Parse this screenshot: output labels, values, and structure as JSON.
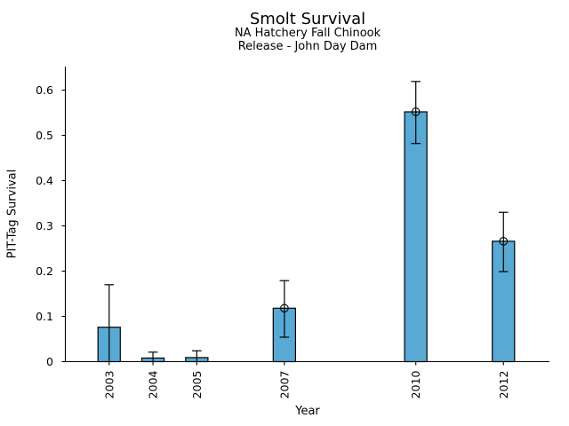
{
  "page": {
    "background": "#ffffff"
  },
  "chart_data": {
    "type": "bar",
    "title": "Smolt Survival",
    "subtitle_lines": [
      "NA Hatchery Fall Chinook",
      "Release - John Day Dam"
    ],
    "xlabel": "Year",
    "ylabel": "PIT-Tag Survival",
    "categories": [
      "2003",
      "2004",
      "2005",
      "2007",
      "2010",
      "2012"
    ],
    "x_values": [
      2003,
      2004,
      2005,
      2007,
      2010,
      2012
    ],
    "series": [
      {
        "name": "PIT-Tag Survival",
        "values": [
          0.076,
          0.008,
          0.009,
          0.118,
          0.552,
          0.266
        ],
        "error_low": [
          0.0,
          0.0,
          0.0,
          0.054,
          0.482,
          0.199
        ],
        "error_high": [
          0.17,
          0.021,
          0.024,
          0.179,
          0.619,
          0.33
        ],
        "point_markers": [
          false,
          false,
          false,
          true,
          true,
          true
        ]
      }
    ],
    "y_ticks": [
      0,
      0.1,
      0.2,
      0.3,
      0.4,
      0.5,
      0.6
    ],
    "y_tick_labels": [
      "0",
      "0.1",
      "0.2",
      "0.3",
      "0.4",
      "0.5",
      "0.6"
    ],
    "ylim": [
      0,
      0.652
    ],
    "xlim": [
      2002.0,
      2013.05
    ],
    "bar_width_x": 0.51,
    "grid": false,
    "legend": null,
    "colors": {
      "bar_fill": "#58A9D4",
      "bar_edge": "#000000",
      "error_bar": "#000000",
      "axis": "#000000",
      "text": "#000000"
    }
  }
}
